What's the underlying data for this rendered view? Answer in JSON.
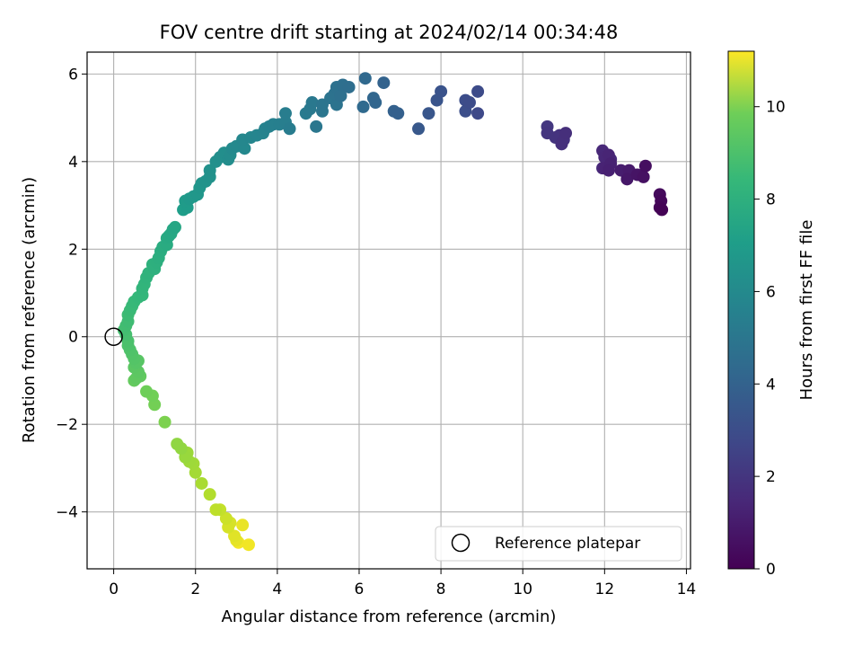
{
  "chart_data": {
    "type": "scatter",
    "title": "FOV centre drift starting at 2024/02/14 00:34:48",
    "xlabel": "Angular distance from reference (arcmin)",
    "ylabel": "Rotation from reference (arcmin)",
    "xlim": [
      -0.65,
      14.1
    ],
    "ylim": [
      -5.3,
      6.5
    ],
    "xticks": [
      0,
      2,
      4,
      6,
      8,
      10,
      12,
      14
    ],
    "yticks": [
      -4,
      -2,
      0,
      2,
      4,
      6
    ],
    "grid": true,
    "colormap": "viridis",
    "colorbar": {
      "label": "Hours from first FF file",
      "range": [
        0,
        11.2
      ],
      "ticks": [
        0,
        2,
        4,
        6,
        8,
        10
      ]
    },
    "legend": {
      "position": "bottom-right",
      "entries": [
        {
          "label": "Reference platepar",
          "marker": "open-circle"
        }
      ]
    },
    "reference_point": [
      0,
      0
    ],
    "points": [
      [
        13.4,
        2.9,
        0.05
      ],
      [
        13.35,
        2.95,
        0.12
      ],
      [
        13.38,
        3.1,
        0.2
      ],
      [
        13.35,
        3.25,
        0.28
      ],
      [
        13.0,
        3.9,
        0.4
      ],
      [
        12.95,
        3.65,
        0.5
      ],
      [
        12.8,
        3.7,
        0.6
      ],
      [
        12.55,
        3.6,
        0.7
      ],
      [
        12.6,
        3.8,
        0.8
      ],
      [
        12.4,
        3.8,
        0.9
      ],
      [
        12.1,
        3.8,
        1.0
      ],
      [
        12.15,
        3.95,
        1.05
      ],
      [
        12.0,
        3.85,
        1.1
      ],
      [
        12.1,
        4.15,
        1.15
      ],
      [
        12.0,
        4.1,
        1.2
      ],
      [
        11.95,
        4.25,
        1.25
      ],
      [
        11.95,
        3.85,
        1.3
      ],
      [
        12.15,
        4.05,
        1.35
      ],
      [
        11.05,
        4.65,
        1.5
      ],
      [
        10.95,
        4.4,
        1.55
      ],
      [
        11.0,
        4.5,
        1.6
      ],
      [
        10.9,
        4.6,
        1.65
      ],
      [
        10.8,
        4.55,
        1.7
      ],
      [
        10.6,
        4.65,
        1.75
      ],
      [
        10.6,
        4.8,
        1.8
      ],
      [
        8.9,
        5.1,
        2.5
      ],
      [
        8.9,
        5.6,
        2.55
      ],
      [
        8.7,
        5.35,
        2.6
      ],
      [
        8.6,
        5.4,
        2.65
      ],
      [
        8.6,
        5.15,
        2.7
      ],
      [
        8.0,
        5.6,
        2.9
      ],
      [
        7.9,
        5.4,
        2.95
      ],
      [
        7.7,
        5.1,
        3.0
      ],
      [
        7.45,
        4.75,
        3.1
      ],
      [
        6.95,
        5.1,
        3.4
      ],
      [
        6.85,
        5.15,
        3.45
      ],
      [
        6.6,
        5.8,
        3.55
      ],
      [
        6.4,
        5.35,
        3.65
      ],
      [
        6.35,
        5.45,
        3.7
      ],
      [
        6.15,
        5.9,
        3.8
      ],
      [
        6.1,
        5.25,
        3.85
      ],
      [
        5.75,
        5.7,
        4.0
      ],
      [
        5.6,
        5.75,
        4.05
      ],
      [
        5.55,
        5.5,
        4.1
      ],
      [
        5.45,
        5.7,
        4.15
      ],
      [
        5.4,
        5.55,
        4.2
      ],
      [
        5.45,
        5.3,
        4.25
      ],
      [
        5.3,
        5.45,
        4.3
      ],
      [
        5.1,
        5.3,
        4.35
      ],
      [
        5.1,
        5.15,
        4.4
      ],
      [
        4.95,
        4.8,
        4.45
      ],
      [
        4.85,
        5.35,
        4.5
      ],
      [
        4.8,
        5.2,
        4.55
      ],
      [
        4.7,
        5.1,
        4.6
      ],
      [
        4.3,
        4.75,
        4.7
      ],
      [
        4.2,
        5.1,
        4.75
      ],
      [
        4.2,
        4.9,
        4.8
      ],
      [
        4.05,
        4.85,
        4.85
      ],
      [
        3.9,
        4.85,
        4.9
      ],
      [
        3.8,
        4.8,
        4.95
      ],
      [
        3.7,
        4.75,
        5.0
      ],
      [
        3.65,
        4.65,
        5.05
      ],
      [
        3.5,
        4.6,
        5.1
      ],
      [
        3.35,
        4.55,
        5.15
      ],
      [
        3.15,
        4.5,
        5.2
      ],
      [
        3.2,
        4.3,
        5.25
      ],
      [
        3.0,
        4.35,
        5.3
      ],
      [
        2.9,
        4.3,
        5.35
      ],
      [
        2.85,
        4.15,
        5.4
      ],
      [
        2.8,
        4.05,
        5.45
      ],
      [
        2.7,
        4.2,
        5.5
      ],
      [
        2.6,
        4.1,
        5.55
      ],
      [
        2.5,
        4.0,
        5.6
      ],
      [
        2.35,
        3.8,
        5.65
      ],
      [
        2.35,
        3.65,
        5.7
      ],
      [
        2.25,
        3.55,
        5.75
      ],
      [
        2.15,
        3.5,
        5.8
      ],
      [
        2.1,
        3.4,
        5.85
      ],
      [
        2.05,
        3.25,
        5.9
      ],
      [
        1.95,
        3.2,
        5.95
      ],
      [
        1.85,
        3.15,
        6.0
      ],
      [
        1.75,
        3.1,
        6.1
      ],
      [
        1.8,
        2.95,
        6.15
      ],
      [
        1.7,
        2.9,
        6.2
      ],
      [
        1.5,
        2.5,
        6.6
      ],
      [
        1.45,
        2.45,
        6.65
      ],
      [
        1.4,
        2.35,
        6.7
      ],
      [
        1.35,
        2.3,
        6.75
      ],
      [
        1.3,
        2.25,
        6.8
      ],
      [
        1.3,
        2.1,
        6.85
      ],
      [
        1.2,
        2.05,
        6.9
      ],
      [
        1.15,
        1.95,
        6.95
      ],
      [
        1.1,
        1.8,
        7.0
      ],
      [
        1.05,
        1.7,
        7.05
      ],
      [
        1.0,
        1.55,
        7.1
      ],
      [
        0.95,
        1.65,
        7.15
      ],
      [
        0.85,
        1.45,
        7.2
      ],
      [
        0.8,
        1.35,
        7.25
      ],
      [
        0.75,
        1.2,
        7.3
      ],
      [
        0.7,
        1.1,
        7.35
      ],
      [
        0.7,
        0.95,
        7.4
      ],
      [
        0.6,
        0.9,
        7.45
      ],
      [
        0.5,
        0.8,
        7.5
      ],
      [
        0.45,
        0.7,
        7.55
      ],
      [
        0.4,
        0.6,
        7.6
      ],
      [
        0.35,
        0.5,
        7.65
      ],
      [
        0.35,
        0.35,
        7.7
      ],
      [
        0.3,
        0.25,
        7.75
      ],
      [
        0.25,
        0.15,
        7.8
      ],
      [
        0.3,
        0.05,
        7.85
      ],
      [
        0.35,
        -0.1,
        7.95
      ],
      [
        0.35,
        -0.2,
        8.0
      ],
      [
        0.4,
        -0.3,
        8.05
      ],
      [
        0.45,
        -0.4,
        8.1
      ],
      [
        0.5,
        -0.5,
        8.15
      ],
      [
        0.55,
        -0.6,
        8.2
      ],
      [
        0.6,
        -0.55,
        8.25
      ],
      [
        0.5,
        -0.7,
        8.3
      ],
      [
        0.6,
        -0.8,
        8.35
      ],
      [
        0.55,
        -0.95,
        8.4
      ],
      [
        0.65,
        -0.9,
        8.45
      ],
      [
        0.5,
        -1.0,
        8.5
      ],
      [
        0.8,
        -1.25,
        8.7
      ],
      [
        0.95,
        -1.35,
        8.75
      ],
      [
        1.0,
        -1.55,
        8.8
      ],
      [
        1.25,
        -1.95,
        8.95
      ],
      [
        1.55,
        -2.45,
        9.3
      ],
      [
        1.65,
        -2.55,
        9.35
      ],
      [
        1.75,
        -2.75,
        9.45
      ],
      [
        1.8,
        -2.65,
        9.5
      ],
      [
        1.85,
        -2.85,
        9.55
      ],
      [
        1.95,
        -2.9,
        9.6
      ],
      [
        2.0,
        -3.1,
        9.65
      ],
      [
        2.15,
        -3.35,
        9.75
      ],
      [
        2.35,
        -3.6,
        9.9
      ],
      [
        2.5,
        -3.95,
        10.1
      ],
      [
        2.6,
        -3.95,
        10.2
      ],
      [
        2.75,
        -4.15,
        10.35
      ],
      [
        2.8,
        -4.35,
        10.5
      ],
      [
        2.85,
        -4.25,
        10.55
      ],
      [
        2.95,
        -4.55,
        10.7
      ],
      [
        3.0,
        -4.65,
        10.8
      ],
      [
        3.15,
        -4.3,
        10.85
      ],
      [
        3.3,
        -4.75,
        11.0
      ],
      [
        3.05,
        -4.7,
        11.05
      ]
    ]
  }
}
